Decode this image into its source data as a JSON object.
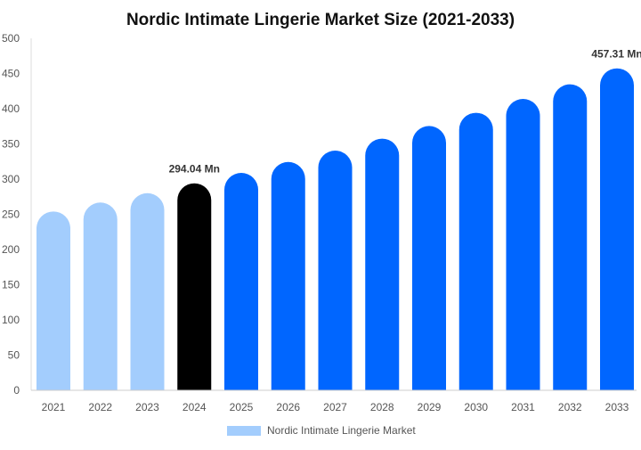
{
  "chart_data": {
    "type": "bar",
    "title": "Nordic Intimate Lingerie Market Size (2021-2033)",
    "categories": [
      "2021",
      "2022",
      "2023",
      "2024",
      "2025",
      "2026",
      "2027",
      "2028",
      "2029",
      "2030",
      "2031",
      "2032",
      "2033"
    ],
    "series": [
      {
        "name": "Nordic Intimate Lingerie Market",
        "values": [
          254.0,
          266.7,
          280.0,
          294.04,
          308.8,
          324.3,
          340.5,
          357.5,
          375.4,
          394.2,
          413.9,
          434.6,
          457.31
        ]
      }
    ],
    "data_labels": [
      {
        "category": "2024",
        "text": "294.04 Mn"
      },
      {
        "category": "2033",
        "text": "457.31 Mn"
      }
    ],
    "ylim": [
      0,
      500
    ],
    "yticks": [
      "0",
      "50",
      "100",
      "150",
      "200",
      "250",
      "300",
      "350",
      "400",
      "450",
      "500"
    ],
    "xlabel": "",
    "ylabel": "",
    "grid": false,
    "legend": "bottom",
    "colors": {
      "historical": "#a3cdfd",
      "base_year": "#000000",
      "forecast": "#0066ff"
    }
  }
}
